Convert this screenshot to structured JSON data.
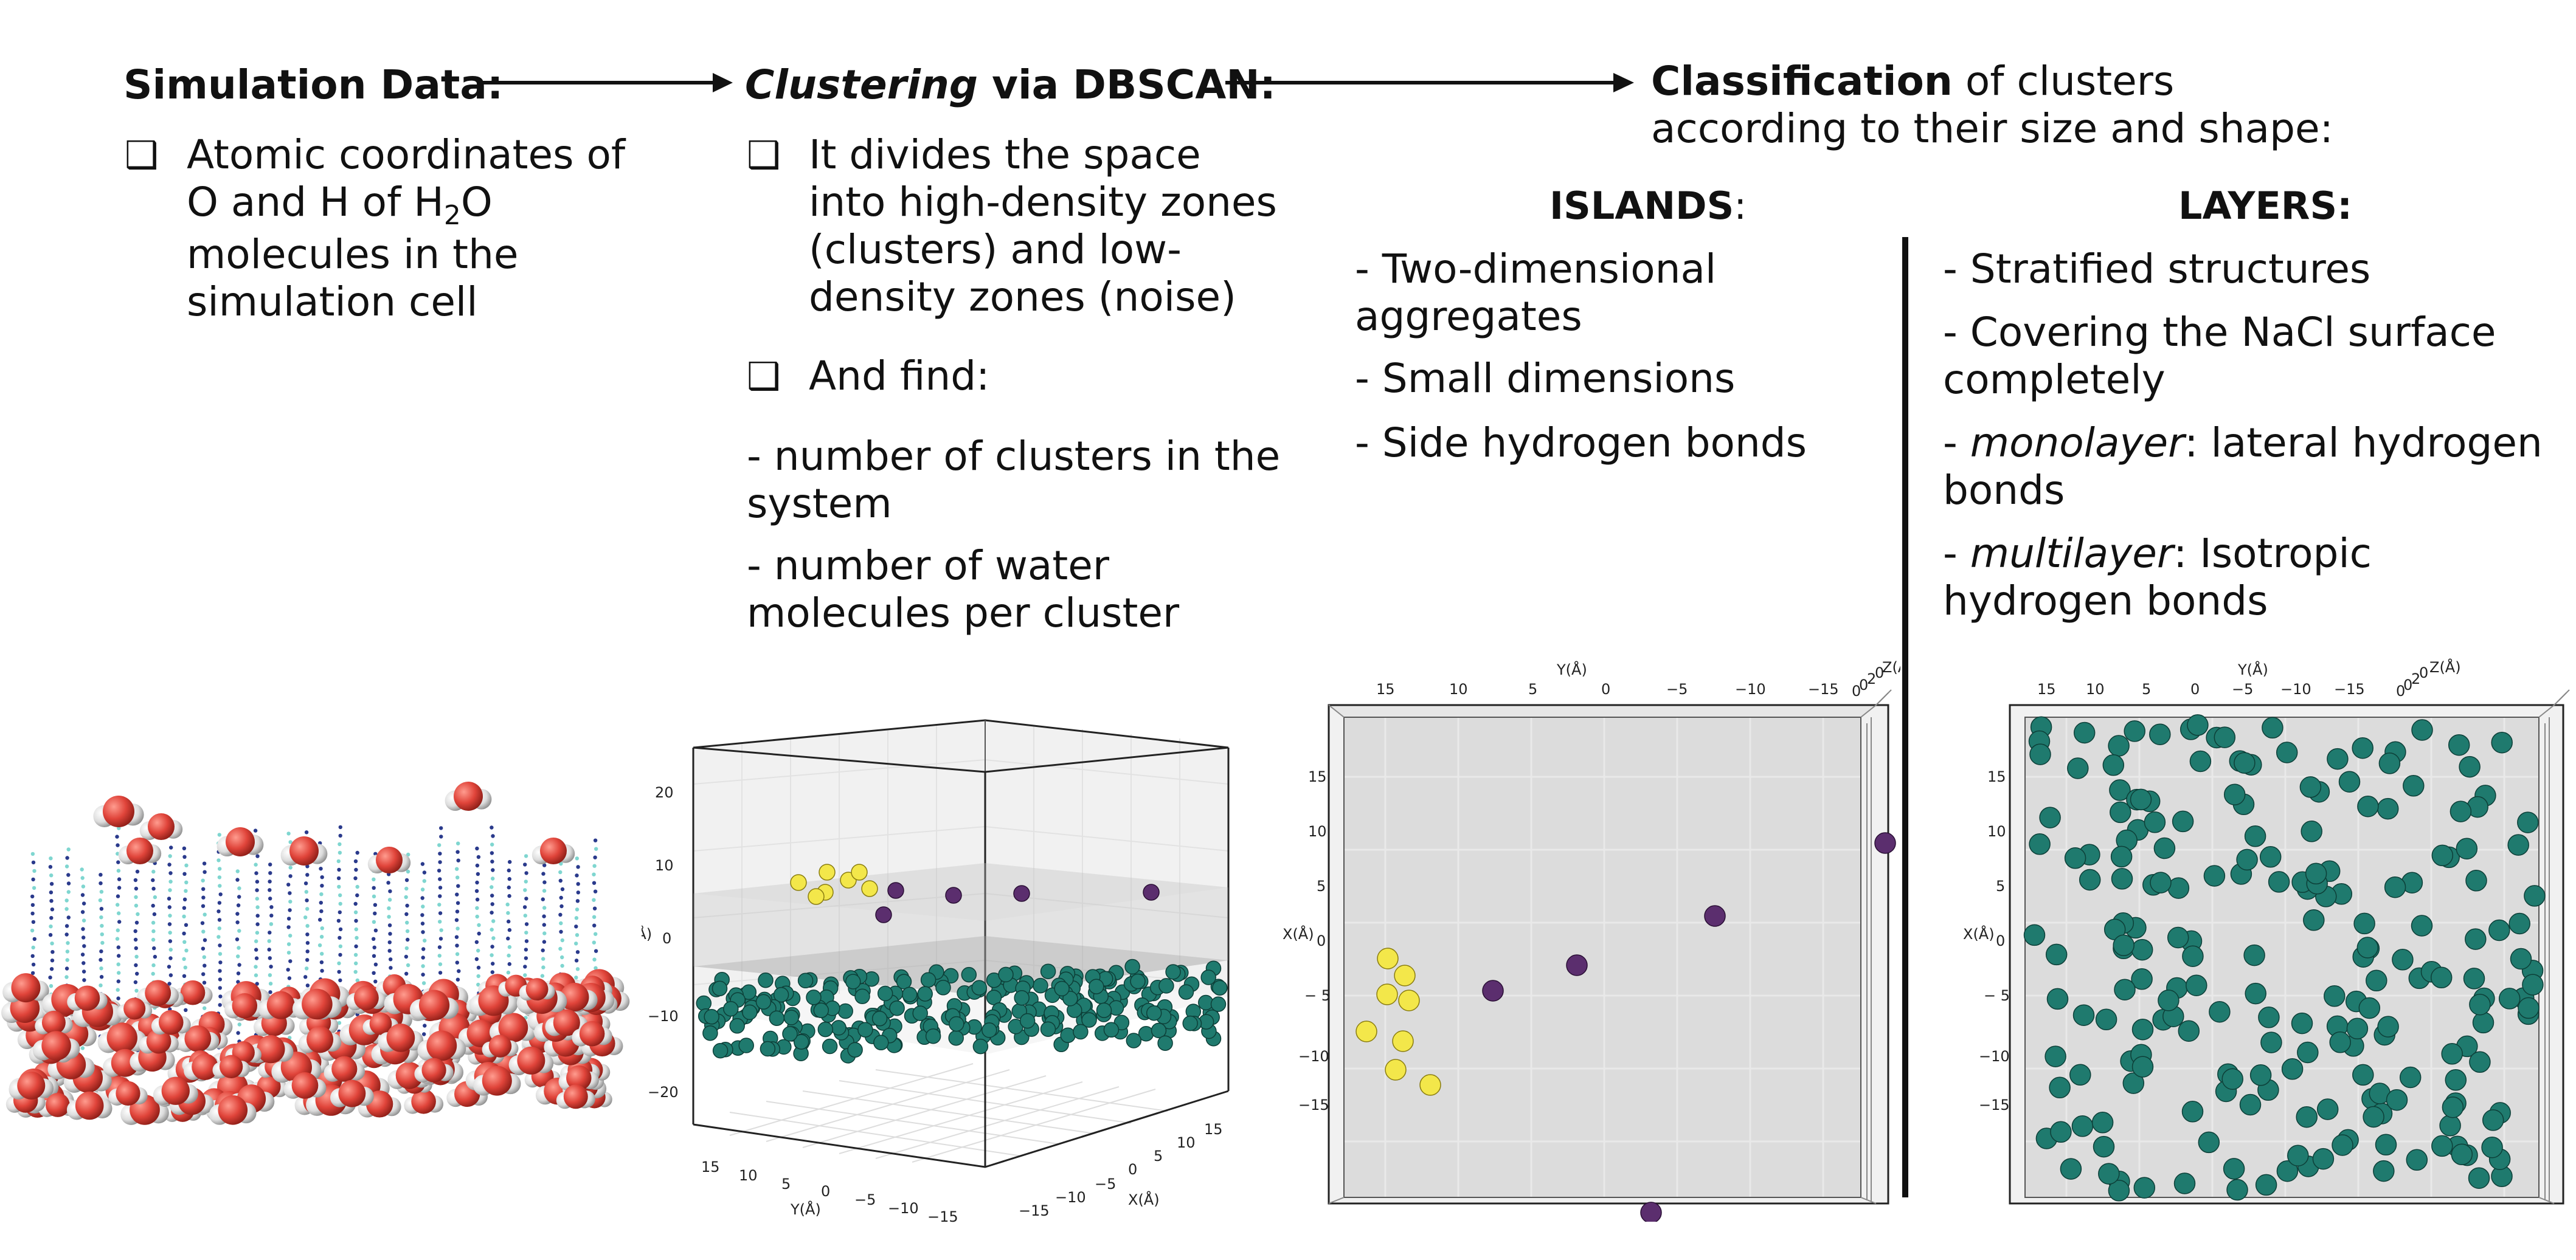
{
  "step1": {
    "title": "Simulation Data:",
    "bullet": "❑",
    "desc_pre": "Atomic coordinates of O and H of H",
    "desc_sub": "2",
    "desc_post": "O molecules in the simulation cell"
  },
  "step2": {
    "title_italic": "Clustering",
    "title_rest": " via DBSCAN:",
    "bullet1": "It divides the space into high-density zones (clusters) and low-density zones (noise)",
    "bullet2": "And find:",
    "find1": "- number of clusters in the system",
    "find2": "- number of water molecules per cluster"
  },
  "step3": {
    "title_bold": "Classification",
    "title_rest": " of clusters",
    "title_line2": "according to their size and shape:"
  },
  "islands": {
    "header": "ISLANDS",
    "header_suffix": ":",
    "items": [
      "- Two-dimensional aggregates",
      "- Small dimensions",
      "- Side hydrogen bonds"
    ]
  },
  "layers": {
    "header": "LAYERS:",
    "item1": "- Stratified structures",
    "item2": "- Covering the NaCl surface completely",
    "item3_italic": "monolayer",
    "item3_rest": ": lateral hydrogen bonds",
    "item4_italic": "multilayer",
    "item4_rest": ": Isotropic hydrogen bonds"
  },
  "colors": {
    "teal": "#1f7a6e",
    "purple": "#5b2e6e",
    "yellow": "#f3e74a",
    "oxygen": "#e0443a",
    "hydrogen": "#e8e8e8",
    "pane": "#dcdcdc"
  },
  "chart_3d": {
    "type": "scatter",
    "zlabel": "(Å)",
    "xlabel": "X(Å)",
    "ylabel": "Y(Å)",
    "z_ticks": [
      "20",
      "10",
      "0",
      "−10",
      "−20"
    ],
    "y_ticks": [
      "15",
      "10",
      "5",
      "0",
      "−5",
      "−10",
      "−15"
    ],
    "x_ticks": [
      "−15",
      "−10",
      "−5",
      "0",
      "5",
      "10",
      "15"
    ]
  },
  "chart_islands": {
    "type": "scatter",
    "xlabel": "X(Å)",
    "ylabel": "Y(Å)",
    "zlabel": "Z(Å)",
    "top_ticks": [
      "15",
      "10",
      "5",
      "0",
      "−5",
      "−10",
      "−15"
    ],
    "left_ticks": [
      "15",
      "10",
      "5",
      "0",
      "− 5",
      "−10",
      "−15"
    ],
    "corner_ticks": [
      "0",
      "0",
      "2",
      "0"
    ]
  },
  "chart_layers": {
    "type": "scatter",
    "xlabel": "X(Å)",
    "ylabel": "Y(Å)",
    "zlabel": "Z(Å)",
    "top_ticks": [
      "15",
      "10",
      "5",
      "0",
      "−5",
      "−10",
      "−15"
    ],
    "left_ticks": [
      "15",
      "10",
      "5",
      "0",
      "− 5",
      "−10",
      "−15"
    ],
    "corner_ticks": [
      "0",
      "0",
      "2",
      "0"
    ]
  }
}
